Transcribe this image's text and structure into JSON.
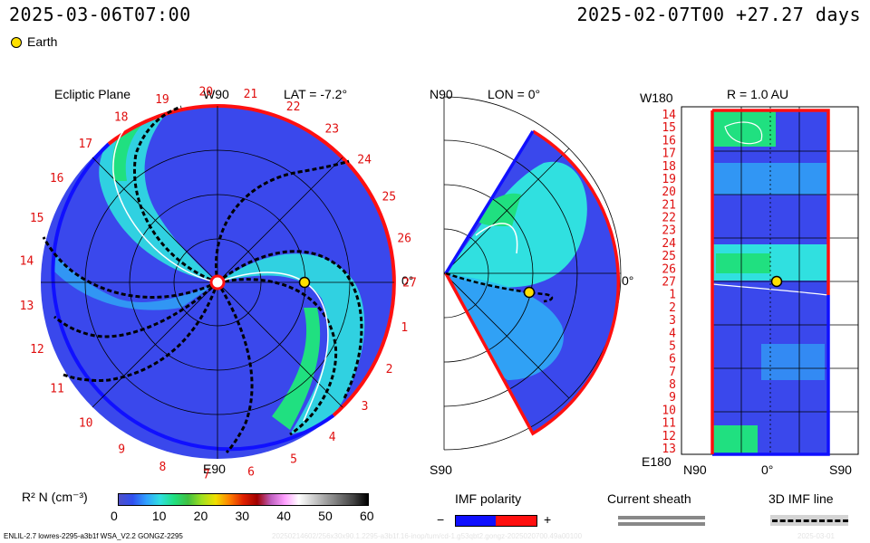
{
  "header": {
    "current_time": "2025-03-06T07:00",
    "run_info": "2025-02-07T00 +27.27 days"
  },
  "legend": {
    "earth_label": "Earth",
    "earth_color": "#ffe000"
  },
  "panel_ecliptic": {
    "title": "Ecliptic Plane",
    "top_label": "W90",
    "bottom_label": "E90",
    "right_label": "0°",
    "lat_label": "LAT = -7.2°",
    "carrington_labels": [
      "1",
      "2",
      "3",
      "4",
      "5",
      "6",
      "7",
      "8",
      "9",
      "10",
      "11",
      "12",
      "13",
      "14",
      "15",
      "16",
      "17",
      "18",
      "19",
      "20",
      "21",
      "22",
      "23",
      "24",
      "25",
      "26",
      "27"
    ]
  },
  "panel_meridional": {
    "top_label": "N90",
    "bottom_label": "S90",
    "lon_label": "LON = 0°",
    "right_label": "0°"
  },
  "panel_radial": {
    "top_left_label": "W180",
    "bottom_left_label": "E180",
    "r_label": "R = 1.0 AU",
    "axis_left": "N90",
    "axis_mid": "0°",
    "axis_right": "S90",
    "day_labels": [
      "14",
      "15",
      "16",
      "17",
      "18",
      "19",
      "20",
      "21",
      "22",
      "23",
      "24",
      "25",
      "26",
      "27",
      "1",
      "2",
      "3",
      "4",
      "5",
      "6",
      "7",
      "8",
      "9",
      "10",
      "11",
      "12",
      "13"
    ]
  },
  "colorbar": {
    "label": "R² N (cm⁻³)",
    "ticks": [
      "0",
      "10",
      "20",
      "30",
      "40",
      "50",
      "60"
    ],
    "colors": [
      "#5050c8",
      "#3050f0",
      "#30a0ff",
      "#30e0e0",
      "#20e080",
      "#40c040",
      "#a0e020",
      "#f0e000",
      "#ff8000",
      "#e02000",
      "#a00000",
      "#c060c0",
      "#ffa0ff",
      "#ffffff",
      "#d0d0d0",
      "#a0a0a0",
      "#707070",
      "#404040",
      "#000000"
    ]
  },
  "imf_legend": {
    "title": "IMF polarity",
    "minus": "−",
    "plus": "+",
    "neg_color": "#1010ff",
    "pos_color": "#ff1010"
  },
  "sheath_legend": {
    "title": "Current sheath"
  },
  "imf_line_legend": {
    "title": "3D IMF line"
  },
  "footer": {
    "model_info": "ENLIL-2.7 lowres-2295-a3b1f WSA_V2.2 GONGZ-2295",
    "faded_info": "20250214602/256x30x90.1.2295-a3b1f.16-inop/tum/cd-1.g53qbt2.gongz-2025020700.49a00100",
    "faded_date": "2025-03-01"
  }
}
